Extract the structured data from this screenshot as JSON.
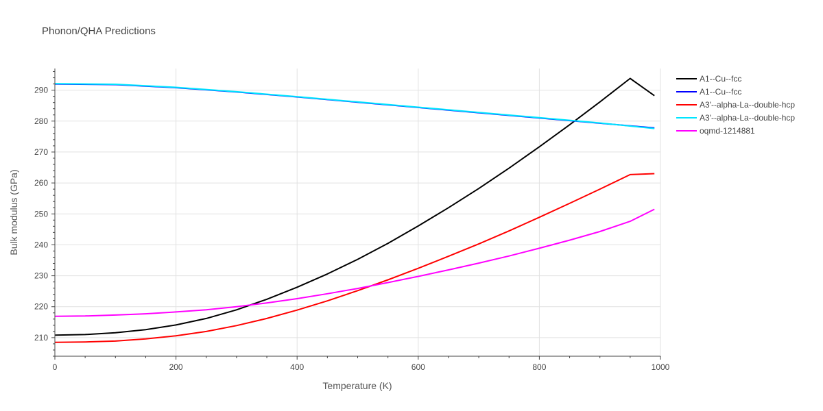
{
  "chart_data": {
    "type": "line",
    "title": "Phonon/QHA Predictions",
    "xlabel": "Temperature (K)",
    "ylabel": "Bulk modulus (GPa)",
    "xlim": [
      0,
      1000
    ],
    "ylim": [
      204,
      297
    ],
    "xticks": [
      0,
      200,
      400,
      600,
      800,
      1000
    ],
    "yticks": [
      210,
      220,
      230,
      240,
      250,
      260,
      270,
      280,
      290
    ],
    "grid": true,
    "legend_position": "top-right",
    "series": [
      {
        "name": "A1--Cu--fcc",
        "color": "#000000",
        "x": [
          0,
          50,
          100,
          150,
          200,
          250,
          300,
          350,
          400,
          450,
          500,
          550,
          600,
          650,
          700,
          750,
          800,
          850,
          900,
          950,
          990
        ],
        "y": [
          210.8,
          211.0,
          211.6,
          212.6,
          214.1,
          216.2,
          219.0,
          222.4,
          226.3,
          230.6,
          235.3,
          240.5,
          246.1,
          252.0,
          258.2,
          264.8,
          271.7,
          278.8,
          286.2,
          293.8,
          288.2
        ]
      },
      {
        "name": "A1--Cu--fcc",
        "color": "#0000ff",
        "x": [
          0,
          100,
          200,
          300,
          400,
          500,
          600,
          700,
          800,
          900,
          990
        ],
        "y": [
          292.0,
          291.8,
          290.8,
          289.4,
          287.8,
          286.1,
          284.4,
          282.7,
          281.0,
          279.3,
          277.8
        ]
      },
      {
        "name": "A3'--alpha-La--double-hcp",
        "color": "#ff0000",
        "x": [
          0,
          50,
          100,
          150,
          200,
          250,
          300,
          350,
          400,
          450,
          500,
          550,
          600,
          650,
          700,
          750,
          800,
          850,
          900,
          950,
          990
        ],
        "y": [
          208.5,
          208.6,
          208.9,
          209.6,
          210.6,
          212.0,
          213.9,
          216.2,
          218.9,
          221.9,
          225.2,
          228.7,
          232.4,
          236.3,
          240.3,
          244.5,
          248.9,
          253.4,
          258.0,
          262.7,
          263.0
        ]
      },
      {
        "name": "A3'--alpha-La--double-hcp",
        "color": "#00e5ff",
        "x": [
          0,
          100,
          200,
          300,
          400,
          500,
          600,
          700,
          800,
          900,
          990
        ],
        "y": [
          292.1,
          291.9,
          290.9,
          289.5,
          287.9,
          286.2,
          284.5,
          282.8,
          281.1,
          279.4,
          277.6
        ]
      },
      {
        "name": "oqmd-1214881",
        "color": "#ff00ff",
        "x": [
          0,
          50,
          100,
          150,
          200,
          250,
          300,
          350,
          400,
          450,
          500,
          550,
          600,
          650,
          700,
          750,
          800,
          850,
          900,
          950,
          990
        ],
        "y": [
          216.9,
          217.0,
          217.3,
          217.7,
          218.3,
          219.0,
          220.0,
          221.2,
          222.6,
          224.2,
          225.9,
          227.8,
          229.8,
          231.9,
          234.1,
          236.4,
          238.9,
          241.5,
          244.3,
          247.6,
          251.5
        ]
      }
    ]
  }
}
